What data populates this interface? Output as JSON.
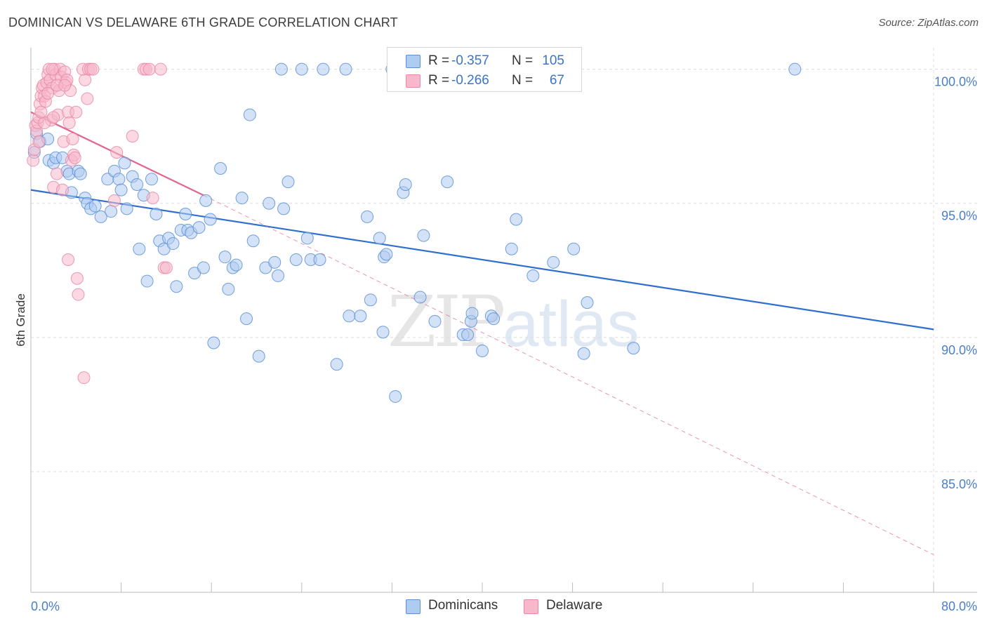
{
  "title": "DOMINICAN VS DELAWARE 6TH GRADE CORRELATION CHART",
  "source": "Source: ZipAtlas.com",
  "watermark": {
    "zip": "ZIP",
    "atlas": "atlas"
  },
  "colors": {
    "blue_fill": "#aecbf0",
    "blue_stroke": "#5b8fd6",
    "blue_line": "#2f6fcf",
    "pink_fill": "#f7b8cb",
    "pink_stroke": "#e889a8",
    "pink_line": "#e0668f",
    "grid": "#dcdcdc",
    "tick_text": "#4a7ec8"
  },
  "legend": {
    "rows": [
      {
        "series": "Dominicans",
        "r_label": "R =",
        "r_value": "-0.357",
        "n_label": "N =",
        "n_value": "105",
        "color": "#aecbf0",
        "border": "#5b8fd6"
      },
      {
        "series": "Delaware",
        "r_label": "R =",
        "r_value": "-0.266",
        "n_label": "N =",
        "n_value": "67",
        "color": "#f7b8cb",
        "border": "#e889a8"
      }
    ]
  },
  "bottom_legend": [
    {
      "label": "Dominicans",
      "color": "#aecbf0",
      "border": "#5b8fd6"
    },
    {
      "label": "Delaware",
      "color": "#f7b8cb",
      "border": "#e889a8"
    }
  ],
  "chart_data": {
    "type": "scatter",
    "title": "DOMINICAN VS DELAWARE 6TH GRADE CORRELATION CHART",
    "xlabel": "",
    "ylabel": "6th Grade",
    "xlim": [
      0,
      80
    ],
    "ylim": [
      80.5,
      100.8
    ],
    "x_ticks": [
      {
        "value": 0,
        "label": "0.0%"
      },
      {
        "value": 80,
        "label": "80.0%"
      }
    ],
    "x_minor_ticks": [
      0,
      8,
      16,
      24,
      32,
      40,
      48,
      56,
      64,
      72,
      80
    ],
    "y_ticks": [
      {
        "value": 100,
        "label": "100.0%"
      },
      {
        "value": 95,
        "label": "95.0%"
      },
      {
        "value": 90,
        "label": "90.0%"
      },
      {
        "value": 85,
        "label": "85.0%"
      }
    ],
    "grid": true,
    "legend_position": "top-center",
    "series": [
      {
        "name": "Dominicans",
        "color": "#aecbf0",
        "trend": {
          "x": [
            0,
            80
          ],
          "y": [
            95.5,
            90.3
          ],
          "style": "solid"
        },
        "points": [
          [
            0.3,
            96.9
          ],
          [
            0.5,
            97.6
          ],
          [
            0.8,
            97.3
          ],
          [
            1.5,
            97.4
          ],
          [
            1.6,
            96.6
          ],
          [
            2.0,
            96.5
          ],
          [
            2.2,
            96.7
          ],
          [
            2.8,
            96.7
          ],
          [
            3.2,
            96.2
          ],
          [
            3.4,
            96.1
          ],
          [
            3.6,
            95.4
          ],
          [
            4.2,
            96.2
          ],
          [
            4.4,
            96.1
          ],
          [
            4.8,
            95.2
          ],
          [
            5.0,
            95.0
          ],
          [
            5.3,
            94.8
          ],
          [
            5.7,
            94.9
          ],
          [
            6.2,
            94.5
          ],
          [
            6.8,
            95.9
          ],
          [
            7.1,
            94.7
          ],
          [
            7.4,
            96.2
          ],
          [
            7.8,
            95.9
          ],
          [
            8.0,
            95.5
          ],
          [
            8.3,
            96.5
          ],
          [
            8.5,
            94.8
          ],
          [
            9.0,
            96.0
          ],
          [
            9.4,
            95.7
          ],
          [
            9.6,
            93.3
          ],
          [
            10.0,
            95.3
          ],
          [
            10.3,
            92.1
          ],
          [
            10.7,
            95.9
          ],
          [
            11.1,
            94.6
          ],
          [
            11.4,
            93.6
          ],
          [
            11.8,
            93.3
          ],
          [
            12.2,
            93.7
          ],
          [
            12.6,
            93.5
          ],
          [
            12.9,
            91.9
          ],
          [
            13.3,
            94.0
          ],
          [
            13.7,
            94.6
          ],
          [
            13.9,
            94.0
          ],
          [
            14.2,
            93.9
          ],
          [
            14.5,
            92.4
          ],
          [
            14.9,
            94.1
          ],
          [
            15.3,
            92.6
          ],
          [
            15.5,
            95.1
          ],
          [
            15.9,
            94.4
          ],
          [
            16.2,
            89.8
          ],
          [
            16.8,
            96.3
          ],
          [
            17.2,
            93.0
          ],
          [
            17.5,
            91.8
          ],
          [
            17.9,
            92.6
          ],
          [
            18.2,
            92.7
          ],
          [
            18.7,
            95.2
          ],
          [
            19.1,
            90.7
          ],
          [
            19.4,
            98.3
          ],
          [
            19.7,
            93.6
          ],
          [
            20.2,
            89.3
          ],
          [
            20.8,
            92.6
          ],
          [
            21.1,
            95.0
          ],
          [
            21.6,
            92.8
          ],
          [
            21.9,
            92.3
          ],
          [
            22.2,
            100.0
          ],
          [
            22.4,
            94.8
          ],
          [
            22.8,
            95.8
          ],
          [
            23.5,
            92.9
          ],
          [
            24.0,
            100.0
          ],
          [
            24.5,
            93.7
          ],
          [
            24.8,
            92.9
          ],
          [
            25.6,
            92.9
          ],
          [
            25.9,
            100.0
          ],
          [
            27.1,
            89.0
          ],
          [
            27.9,
            100.0
          ],
          [
            28.2,
            90.8
          ],
          [
            29.2,
            90.8
          ],
          [
            29.8,
            94.5
          ],
          [
            30.1,
            91.4
          ],
          [
            30.9,
            93.7
          ],
          [
            31.2,
            90.2
          ],
          [
            31.3,
            93.0
          ],
          [
            31.5,
            93.1
          ],
          [
            32.0,
            100.0
          ],
          [
            32.3,
            87.8
          ],
          [
            33.0,
            95.4
          ],
          [
            33.2,
            95.7
          ],
          [
            34.5,
            91.5
          ],
          [
            34.8,
            93.8
          ],
          [
            35.8,
            90.6
          ],
          [
            36.9,
            95.8
          ],
          [
            38.3,
            90.1
          ],
          [
            38.7,
            90.1
          ],
          [
            39.0,
            90.6
          ],
          [
            39.1,
            90.9
          ],
          [
            40.0,
            89.5
          ],
          [
            40.8,
            90.8
          ],
          [
            41.0,
            90.7
          ],
          [
            42.0,
            100.0
          ],
          [
            42.6,
            93.3
          ],
          [
            43.0,
            94.4
          ],
          [
            44.5,
            92.3
          ],
          [
            46.3,
            92.8
          ],
          [
            48.1,
            93.3
          ],
          [
            49.0,
            89.4
          ],
          [
            49.3,
            91.3
          ],
          [
            53.4,
            89.6
          ],
          [
            67.7,
            100.0
          ]
        ]
      },
      {
        "name": "Delaware",
        "color": "#f7b8cb",
        "trend": {
          "x": [
            0,
            15.3
          ],
          "y": [
            98.4,
            95.3
          ],
          "style": "solid",
          "extended_x": [
            15.3,
            80
          ],
          "extended_y": [
            95.3,
            81.9
          ],
          "extended_style": "dashed"
        },
        "points": [
          [
            0.2,
            96.6
          ],
          [
            0.3,
            97.0
          ],
          [
            0.4,
            97.9
          ],
          [
            0.5,
            97.7
          ],
          [
            0.6,
            98.0
          ],
          [
            0.7,
            98.2
          ],
          [
            0.8,
            98.7
          ],
          [
            0.9,
            99.0
          ],
          [
            1.0,
            99.3
          ],
          [
            1.1,
            99.4
          ],
          [
            1.2,
            99.0
          ],
          [
            1.3,
            98.8
          ],
          [
            1.4,
            99.5
          ],
          [
            1.5,
            99.8
          ],
          [
            1.6,
            100.0
          ],
          [
            1.7,
            99.6
          ],
          [
            1.8,
            98.1
          ],
          [
            1.9,
            99.3
          ],
          [
            2.0,
            95.6
          ],
          [
            2.1,
            100.0
          ],
          [
            2.2,
            99.8
          ],
          [
            2.3,
            96.1
          ],
          [
            2.4,
            98.3
          ],
          [
            2.5,
            99.2
          ],
          [
            2.6,
            100.0
          ],
          [
            2.7,
            99.7
          ],
          [
            2.8,
            95.5
          ],
          [
            2.9,
            97.3
          ],
          [
            3.0,
            99.9
          ],
          [
            3.1,
            99.5
          ],
          [
            3.2,
            99.6
          ],
          [
            3.3,
            98.4
          ],
          [
            3.4,
            98.0
          ],
          [
            3.5,
            99.2
          ],
          [
            3.6,
            96.6
          ],
          [
            3.7,
            97.4
          ],
          [
            3.8,
            96.8
          ],
          [
            3.9,
            96.7
          ],
          [
            4.0,
            98.4
          ],
          [
            4.1,
            92.2
          ],
          [
            4.2,
            91.6
          ],
          [
            3.3,
            92.9
          ],
          [
            4.8,
            99.6
          ],
          [
            4.6,
            100.0
          ],
          [
            5.0,
            98.9
          ],
          [
            5.1,
            100.0
          ],
          [
            5.3,
            100.0
          ],
          [
            5.5,
            100.0
          ],
          [
            4.7,
            88.5
          ],
          [
            7.4,
            95.1
          ],
          [
            7.6,
            96.9
          ],
          [
            9.0,
            97.5
          ],
          [
            10.0,
            100.0
          ],
          [
            10.2,
            100.0
          ],
          [
            10.5,
            100.0
          ],
          [
            10.8,
            95.2
          ],
          [
            11.5,
            100.0
          ],
          [
            11.8,
            92.6
          ],
          [
            12.0,
            92.6
          ],
          [
            1.2,
            98.0
          ],
          [
            0.9,
            98.4
          ],
          [
            1.5,
            99.1
          ],
          [
            0.7,
            97.3
          ],
          [
            2.0,
            98.2
          ],
          [
            2.3,
            99.4
          ],
          [
            1.9,
            100.0
          ],
          [
            3.0,
            99.4
          ]
        ]
      }
    ]
  }
}
